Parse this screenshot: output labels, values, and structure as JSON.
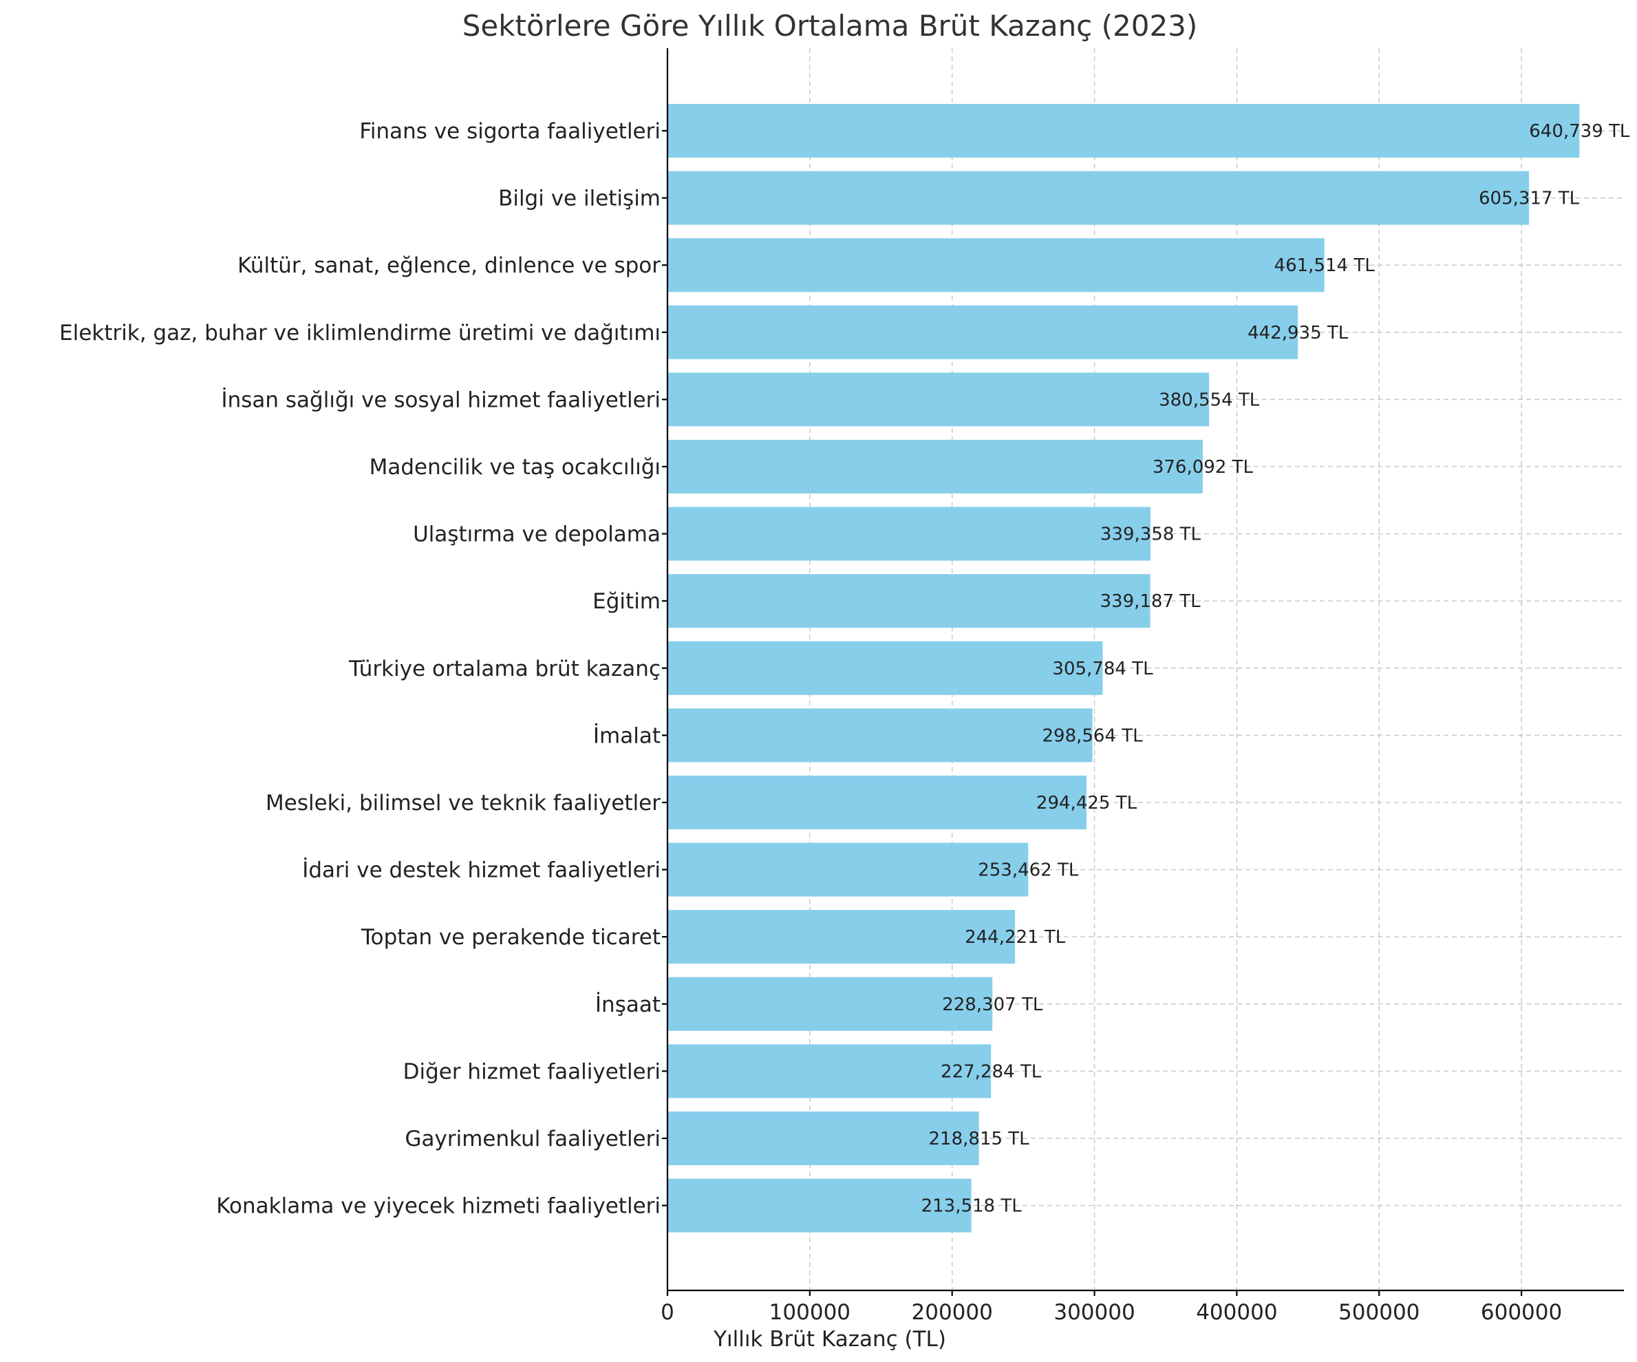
{
  "chart_data": {
    "type": "bar",
    "orientation": "horizontal",
    "title": "Sektörlere Göre Yıllık Ortalama Brüt Kazanç (2023)",
    "xlabel": "Yıllık Brüt Kazanç (TL)",
    "ylabel": "",
    "xlim": [
      0,
      672000
    ],
    "xticks": [
      0,
      100000,
      200000,
      300000,
      400000,
      500000,
      600000
    ],
    "xtick_labels": [
      "0",
      "100000",
      "200000",
      "300000",
      "400000",
      "500000",
      "600000"
    ],
    "grid": true,
    "bar_color": "#87CEEB",
    "categories": [
      "Finans ve sigorta faaliyetleri",
      "Bilgi ve iletişim",
      "Kültür, sanat, eğlence, dinlence ve spor",
      "Elektrik, gaz, buhar ve iklimlendirme üretimi ve dağıtımı",
      "İnsan sağlığı ve sosyal hizmet faaliyetleri",
      "Madencilik ve taş ocakcılığı",
      "Ulaştırma ve depolama",
      "Eğitim",
      "Türkiye ortalama brüt kazanç",
      "İmalat",
      "Mesleki, bilimsel ve teknik faaliyetler",
      "İdari ve destek hizmet faaliyetleri",
      "Toptan ve perakende ticaret",
      "İnşaat",
      "Diğer hizmet faaliyetleri",
      "Gayrimenkul faaliyetleri",
      "Konaklama ve yiyecek hizmeti faaliyetleri"
    ],
    "values": [
      640739,
      605317,
      461514,
      442935,
      380554,
      376092,
      339358,
      339187,
      305784,
      298564,
      294425,
      253462,
      244221,
      228307,
      227284,
      218815,
      213518
    ],
    "value_labels": [
      "640,739 TL",
      "605,317 TL",
      "461,514 TL",
      "442,935 TL",
      "380,554 TL",
      "376,092 TL",
      "339,358 TL",
      "339,187 TL",
      "305,784 TL",
      "298,564 TL",
      "294,425 TL",
      "253,462 TL",
      "244,221 TL",
      "228,307 TL",
      "227,284 TL",
      "218,815 TL",
      "213,518 TL"
    ]
  }
}
